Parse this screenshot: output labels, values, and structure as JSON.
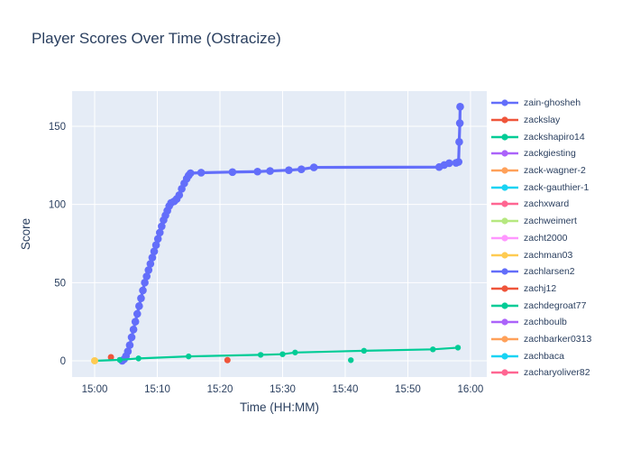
{
  "title": "Player Scores Over Time (Ostracize)",
  "colors": {
    "text": "#2a3f5f",
    "plot_background": "#E5ECF6",
    "gridline": "#ffffff",
    "paper_background": "#ffffff"
  },
  "chart_data": {
    "type": "line",
    "title": "Player Scores Over Time (Ostracize)",
    "xlabel": "Time (HH:MM)",
    "ylabel": "Score",
    "x_ticks": [
      {
        "label": "15:00",
        "minutes": 0
      },
      {
        "label": "15:10",
        "minutes": 10
      },
      {
        "label": "15:20",
        "minutes": 20
      },
      {
        "label": "15:30",
        "minutes": 30
      },
      {
        "label": "15:40",
        "minutes": 40
      },
      {
        "label": "15:50",
        "minutes": 50
      },
      {
        "label": "16:00",
        "minutes": 60
      }
    ],
    "y_ticks": [
      0,
      50,
      100,
      150
    ],
    "xlim_minutes_after_1500": [
      -3.6,
      62.6
    ],
    "ylim": [
      -10.4,
      172.5
    ],
    "grid": true,
    "legend_position": "right",
    "series": [
      {
        "name": "zain-ghosheh",
        "color": "#636EFA",
        "line_width": 3.2,
        "marker_r": 4.3,
        "mode": "lines+markers",
        "points": [
          [
            4.4,
            0
          ],
          [
            4.7,
            1
          ],
          [
            5.0,
            3
          ],
          [
            5.3,
            6
          ],
          [
            5.6,
            10
          ],
          [
            5.9,
            15
          ],
          [
            6.2,
            20
          ],
          [
            6.5,
            25
          ],
          [
            6.8,
            30
          ],
          [
            7.1,
            35
          ],
          [
            7.4,
            40
          ],
          [
            7.7,
            45
          ],
          [
            8.0,
            50
          ],
          [
            8.3,
            54
          ],
          [
            8.6,
            58
          ],
          [
            8.9,
            62
          ],
          [
            9.2,
            66
          ],
          [
            9.5,
            70
          ],
          [
            9.8,
            74
          ],
          [
            10.1,
            78
          ],
          [
            10.4,
            82
          ],
          [
            10.7,
            86
          ],
          [
            11.0,
            90
          ],
          [
            11.3,
            93
          ],
          [
            11.6,
            96
          ],
          [
            11.9,
            99
          ],
          [
            12.2,
            101
          ],
          [
            12.7,
            102
          ],
          [
            13.1,
            103.5
          ],
          [
            13.5,
            106
          ],
          [
            13.9,
            110
          ],
          [
            14.3,
            113.5
          ],
          [
            14.7,
            116.5
          ],
          [
            15.0,
            118.5
          ],
          [
            15.3,
            120
          ],
          [
            17,
            120.3
          ],
          [
            22,
            120.7
          ],
          [
            26,
            121
          ],
          [
            28,
            121.4
          ],
          [
            31,
            121.9
          ],
          [
            33,
            122.5
          ],
          [
            35,
            123.7
          ],
          [
            55,
            123.9
          ],
          [
            55.8,
            125.2
          ],
          [
            56.6,
            126.4
          ],
          [
            57.7,
            126.6
          ],
          [
            58.1,
            127.2
          ],
          [
            58.2,
            140
          ],
          [
            58.3,
            152
          ],
          [
            58.35,
            162.5
          ]
        ]
      },
      {
        "name": "zackslay",
        "color": "#EF553B",
        "line_width": 2.2,
        "marker_r": 3.5,
        "mode": "markers",
        "points": [
          [
            2.6,
            2.3
          ]
        ]
      },
      {
        "name": "zackshapiro14",
        "color": "#00CC96",
        "line_width": 2.2,
        "marker_r": 3.2,
        "mode": "lines+markers",
        "points": [
          [
            0,
            0
          ],
          [
            4,
            0.6
          ],
          [
            7,
            1.5
          ],
          [
            15,
            2.8
          ],
          [
            26.5,
            3.8
          ],
          [
            30,
            4.2
          ],
          [
            32,
            5.3
          ],
          [
            43,
            6.4
          ],
          [
            54,
            7.3
          ],
          [
            58,
            8.4
          ]
        ]
      },
      {
        "name": "zachman03",
        "color": "#FECB52",
        "line_width": 2.2,
        "marker_r": 4,
        "mode": "markers",
        "points": [
          [
            0,
            0
          ]
        ]
      },
      {
        "name": "zachj12",
        "color": "#EF553B",
        "line_width": 2.2,
        "marker_r": 3.5,
        "mode": "markers",
        "points": [
          [
            21.2,
            0.4
          ]
        ]
      },
      {
        "name": "zachdegroat77",
        "color": "#00CC96",
        "line_width": 2.2,
        "marker_r": 3.2,
        "mode": "markers",
        "points": [
          [
            40.9,
            0.4
          ]
        ]
      }
    ]
  },
  "legend": {
    "items": [
      {
        "label": "zain-ghosheh",
        "color": "#636EFA"
      },
      {
        "label": "zackslay",
        "color": "#EF553B"
      },
      {
        "label": "zackshapiro14",
        "color": "#00CC96"
      },
      {
        "label": "zackgiesting",
        "color": "#AB63FA"
      },
      {
        "label": "zack-wagner-2",
        "color": "#FFA15A"
      },
      {
        "label": "zack-gauthier-1",
        "color": "#19D3F3"
      },
      {
        "label": "zachxward",
        "color": "#FF6692"
      },
      {
        "label": "zachweimert",
        "color": "#B6E880"
      },
      {
        "label": "zacht2000",
        "color": "#FF97FF"
      },
      {
        "label": "zachman03",
        "color": "#FECB52"
      },
      {
        "label": "zachlarsen2",
        "color": "#636EFA"
      },
      {
        "label": "zachj12",
        "color": "#EF553B"
      },
      {
        "label": "zachdegroat77",
        "color": "#00CC96"
      },
      {
        "label": "zachboulb",
        "color": "#AB63FA"
      },
      {
        "label": "zachbarker0313",
        "color": "#FFA15A"
      },
      {
        "label": "zachbaca",
        "color": "#19D3F3"
      },
      {
        "label": "zacharyoliver82",
        "color": "#FF6692"
      }
    ]
  }
}
